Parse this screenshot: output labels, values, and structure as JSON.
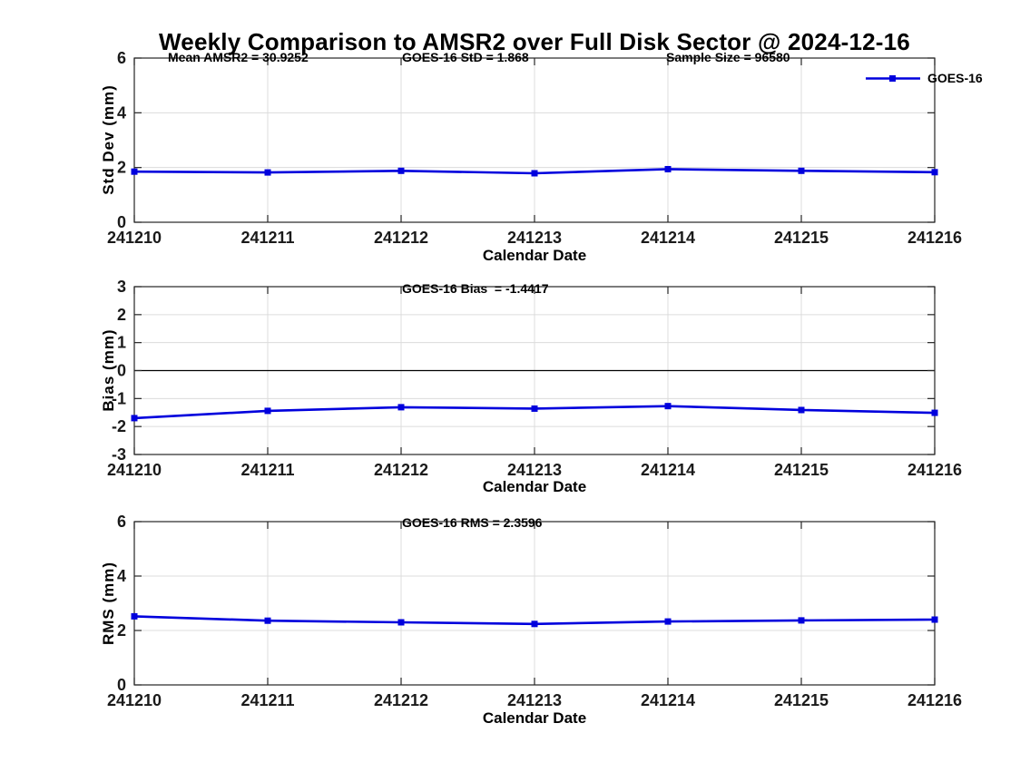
{
  "title": "Weekly Comparison to AMSR2 over Full Disk Sector @ 2024-12-16",
  "legend": {
    "label": "GOES-16",
    "position": "top-right-outside"
  },
  "colors": {
    "line": "#0000dd",
    "grid": "#dcdcdc",
    "axis": "#262626",
    "zero_line": "#000000",
    "text": "#000000",
    "background": "#ffffff"
  },
  "chart_data": [
    {
      "type": "line",
      "name": "std-dev-panel",
      "ylabel": "Std Dev (mm)",
      "xlabel": "Calendar Date",
      "ylim": [
        0,
        6
      ],
      "yticks": [
        0,
        2,
        4,
        6
      ],
      "grid": true,
      "zero_line": false,
      "categories": [
        "241210",
        "241211",
        "241212",
        "241213",
        "241214",
        "241215",
        "241216"
      ],
      "series": [
        {
          "name": "GOES-16",
          "values": [
            1.85,
            1.82,
            1.88,
            1.79,
            1.94,
            1.88,
            1.83
          ]
        }
      ],
      "annotations": [
        {
          "text": "Mean AMSR2 = 30.9252"
        },
        {
          "text": "GOES-16 StD = 1.868"
        },
        {
          "text": "Sample Size = 96580"
        }
      ]
    },
    {
      "type": "line",
      "name": "bias-panel",
      "ylabel": "Bias (mm)",
      "xlabel": "Calendar Date",
      "ylim": [
        -3,
        3
      ],
      "yticks": [
        -3,
        -2,
        -1,
        0,
        1,
        2,
        3
      ],
      "grid": true,
      "zero_line": true,
      "categories": [
        "241210",
        "241211",
        "241212",
        "241213",
        "241214",
        "241215",
        "241216"
      ],
      "series": [
        {
          "name": "GOES-16",
          "values": [
            -1.7,
            -1.44,
            -1.31,
            -1.36,
            -1.27,
            -1.41,
            -1.51
          ]
        }
      ],
      "annotations": [
        {
          "text": "GOES-16 Bias  = -1.4417"
        }
      ]
    },
    {
      "type": "line",
      "name": "rms-panel",
      "ylabel": "RMS (mm)",
      "xlabel": "Calendar Date",
      "ylim": [
        0,
        6
      ],
      "yticks": [
        0,
        2,
        4,
        6
      ],
      "grid": true,
      "zero_line": false,
      "categories": [
        "241210",
        "241211",
        "241212",
        "241213",
        "241214",
        "241215",
        "241216"
      ],
      "series": [
        {
          "name": "GOES-16",
          "values": [
            2.52,
            2.36,
            2.3,
            2.24,
            2.33,
            2.37,
            2.4
          ]
        }
      ],
      "annotations": [
        {
          "text": "GOES-16 RMS = 2.3596"
        }
      ]
    }
  ]
}
